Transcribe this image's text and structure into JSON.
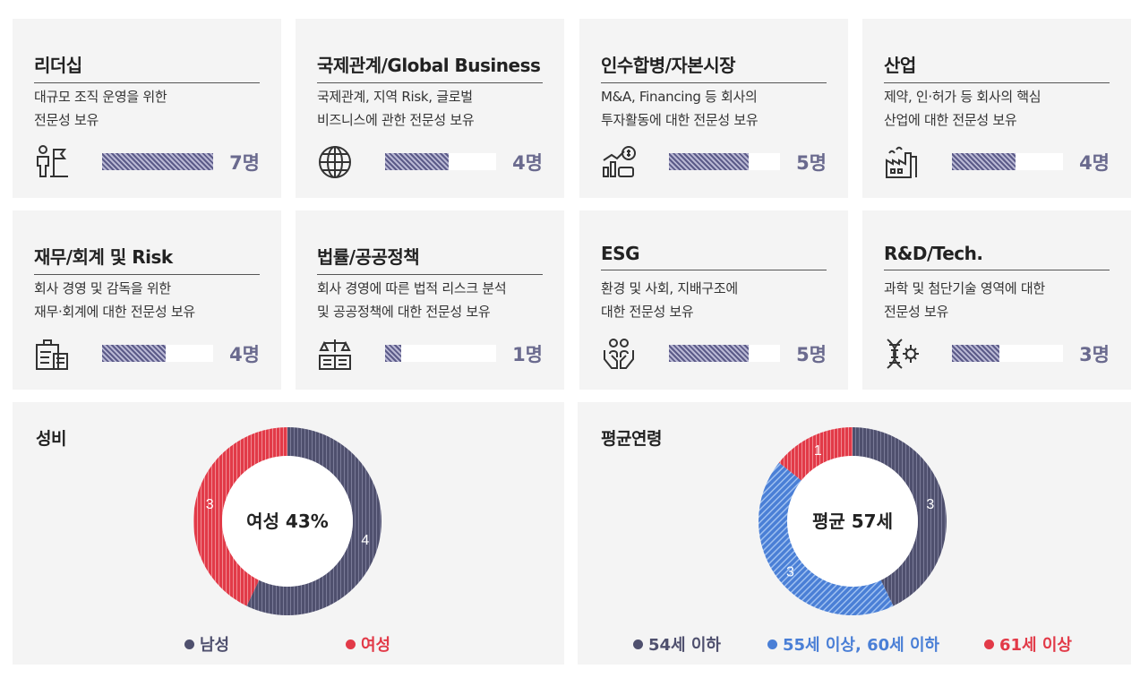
{
  "cards": [
    {
      "title": "리더십",
      "desc": [
        "대규모 조직 운영을 위한",
        "전문성 보유"
      ],
      "count": "7명",
      "value": 7,
      "icon": "leadership-flag-icon"
    },
    {
      "title": "국제관계/Global Business",
      "desc": [
        "국제관계, 지역 Risk, 글로벌",
        "비즈니스에 관한 전문성 보유"
      ],
      "count": "4명",
      "value": 4,
      "icon": "globe-icon"
    },
    {
      "title": "인수합병/자본시장",
      "desc": [
        "M&A, Financing 등 회사의",
        "투자활동에 대한 전문성 보유"
      ],
      "count": "5명",
      "value": 5,
      "icon": "finance-chart-icon"
    },
    {
      "title": "산업",
      "desc": [
        "제약, 인·허가 등 회사의 핵심",
        "산업에 대한 전문성 보유"
      ],
      "count": "4명",
      "value": 4,
      "icon": "factory-icon"
    },
    {
      "title": "재무/회계 및 Risk",
      "desc": [
        "회사 경영 및 감독을 위한",
        "재무·회계에 대한 전문성 보유"
      ],
      "count": "4명",
      "value": 4,
      "icon": "accounting-icon"
    },
    {
      "title": "법률/공공정책",
      "desc": [
        "회사 경영에 따른 법적 리스크 분석",
        "및 공공정책에 대한 전문성 보유"
      ],
      "count": "1명",
      "value": 1,
      "icon": "law-scale-icon"
    },
    {
      "title": "ESG",
      "desc": [
        "환경 및 사회, 지배구조에",
        "대한 전문성 보유"
      ],
      "count": "5명",
      "value": 5,
      "icon": "esg-hands-icon"
    },
    {
      "title": "R&D/Tech.",
      "desc": [
        "과학 및 첨단기술 영역에 대한",
        "전문성 보유"
      ],
      "count": "3명",
      "value": 3,
      "icon": "dna-gear-icon"
    }
  ],
  "bar_max": 7,
  "gender": {
    "title": "성비",
    "center": "여성 43%",
    "legend": [
      {
        "label": "남성",
        "color": "#4f506e"
      },
      {
        "label": "여성",
        "color": "#e23a48"
      }
    ]
  },
  "age": {
    "title": "평균연령",
    "center": "평균 57세",
    "legend": [
      {
        "label": "54세 이하",
        "color": "#4f506e"
      },
      {
        "label": "55세 이상, 60세 이하",
        "color": "#4a7fd6"
      },
      {
        "label": "61세 이상",
        "color": "#e23a48"
      }
    ]
  },
  "chart_data": [
    {
      "type": "bar",
      "categories": [
        "리더십",
        "국제관계/Global Business",
        "인수합병/자본시장",
        "산업",
        "재무/회계 및 Risk",
        "법률/공공정책",
        "ESG",
        "R&D/Tech."
      ],
      "values": [
        7,
        4,
        5,
        4,
        4,
        1,
        5,
        3
      ]
    },
    {
      "type": "pie",
      "title": "성비",
      "labels": [
        "남성",
        "여성"
      ],
      "values": [
        4,
        3
      ],
      "colors": [
        "#4f506e",
        "#e23a48"
      ]
    },
    {
      "type": "pie",
      "title": "평균연령",
      "labels": [
        "54세 이하",
        "55세 이상, 60세 이하",
        "61세 이상"
      ],
      "values": [
        3,
        3,
        1
      ],
      "colors": [
        "#4f506e",
        "#4a7fd6",
        "#e23a48"
      ]
    }
  ]
}
